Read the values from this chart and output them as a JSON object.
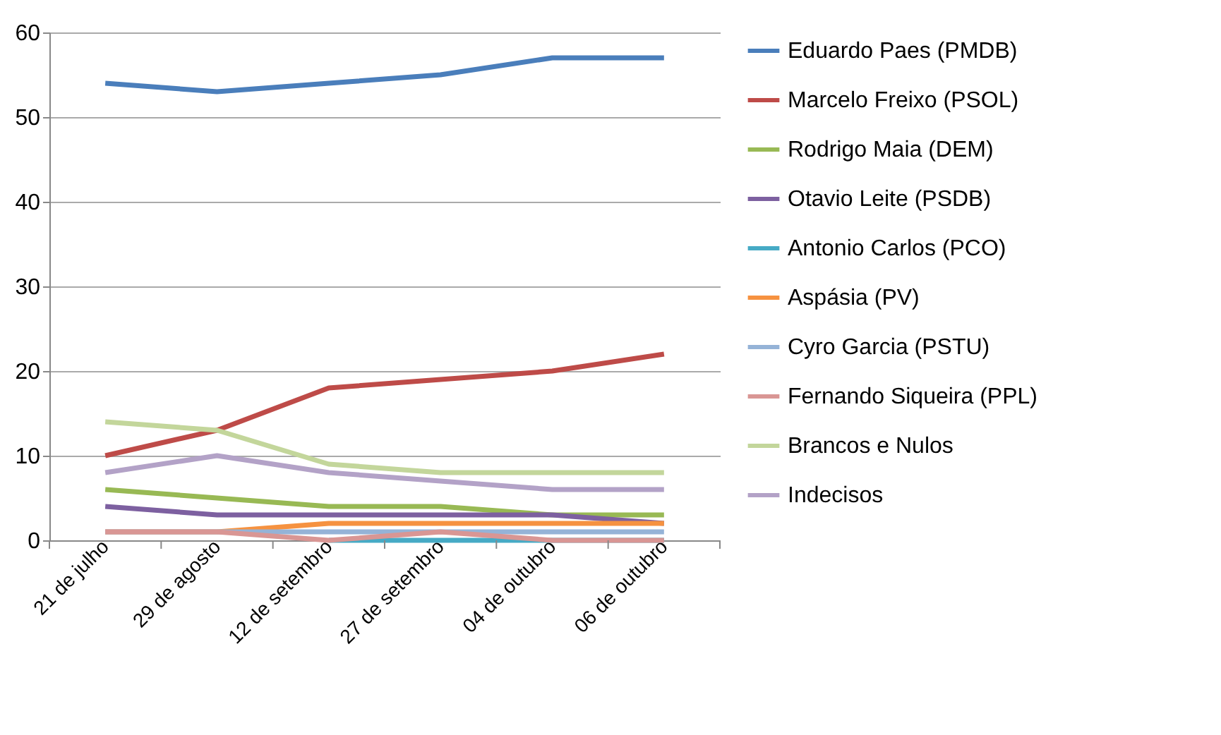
{
  "chart_data": {
    "type": "line",
    "categories": [
      "21 de julho",
      "29 de agosto",
      "12 de setembro",
      "27 de setembro",
      "04 de outubro",
      "06 de outubro"
    ],
    "ylim": [
      0,
      60
    ],
    "yticks": [
      0,
      10,
      20,
      30,
      40,
      50,
      60
    ],
    "grid": "y",
    "legend": "right",
    "marker": "none",
    "line_style": "solid",
    "series": [
      {
        "name": "Eduardo Paes (PMDB)",
        "color": "#4a7ebb",
        "values": [
          54,
          53,
          54,
          55,
          57,
          57
        ]
      },
      {
        "name": "Marcelo Freixo (PSOL)",
        "color": "#be4b48",
        "values": [
          10,
          13,
          18,
          19,
          20,
          22
        ]
      },
      {
        "name": "Rodrigo Maia (DEM)",
        "color": "#98b954",
        "values": [
          6,
          5,
          4,
          4,
          3,
          3
        ]
      },
      {
        "name": "Otavio Leite (PSDB)",
        "color": "#7d60a0",
        "values": [
          4,
          3,
          3,
          3,
          3,
          2
        ]
      },
      {
        "name": "Antonio Carlos (PCO)",
        "color": "#46aac5",
        "values": [
          null,
          null,
          0,
          0,
          0,
          0
        ]
      },
      {
        "name": "Aspásia (PV)",
        "color": "#f69240",
        "values": [
          1,
          1,
          2,
          2,
          2,
          2
        ]
      },
      {
        "name": "Cyro Garcia (PSTU)",
        "color": "#95b3d7",
        "values": [
          1,
          1,
          1,
          1,
          1,
          1
        ]
      },
      {
        "name": "Fernando Siqueira (PPL)",
        "color": "#d99694",
        "values": [
          1,
          1,
          0,
          1,
          0,
          0
        ]
      },
      {
        "name": "Brancos e Nulos",
        "color": "#c3d69b",
        "values": [
          14,
          13,
          9,
          8,
          8,
          8
        ]
      },
      {
        "name": "Indecisos",
        "color": "#b3a2c7",
        "values": [
          8,
          10,
          8,
          7,
          6,
          6
        ]
      }
    ]
  }
}
